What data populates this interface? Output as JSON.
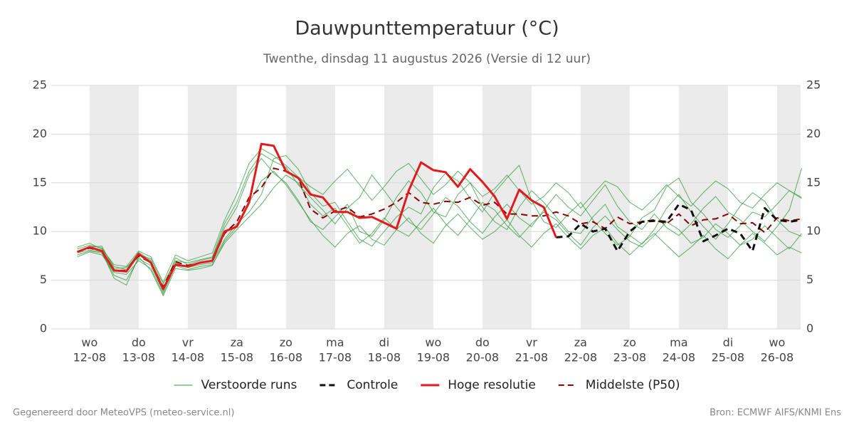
{
  "chart_data": {
    "type": "line",
    "title": "Dauwpunttemperatuur (°C)",
    "subtitle": "Twenthe, dinsdag 11 augustus 2026 (Versie di 12 uur)",
    "source_left": "Gegenereerd door MeteoVPS (meteo-service.nl)",
    "source_right": "Bron: ECMWF AIFS/KNMI Ens",
    "xlim": [
      -0.78,
      14.48
    ],
    "xticks": [
      {
        "value": 0,
        "label": [
          "wo",
          "12-08"
        ]
      },
      {
        "value": 1,
        "label": [
          "do",
          "13-08"
        ]
      },
      {
        "value": 2,
        "label": [
          "vr",
          "14-08"
        ]
      },
      {
        "value": 3,
        "label": [
          "za",
          "15-08"
        ]
      },
      {
        "value": 4,
        "label": [
          "zo",
          "16-08"
        ]
      },
      {
        "value": 5,
        "label": [
          "ma",
          "17-08"
        ]
      },
      {
        "value": 6,
        "label": [
          "di",
          "18-08"
        ]
      },
      {
        "value": 7,
        "label": [
          "wo",
          "19-08"
        ]
      },
      {
        "value": 8,
        "label": [
          "do",
          "20-08"
        ]
      },
      {
        "value": 9,
        "label": [
          "vr",
          "21-08"
        ]
      },
      {
        "value": 10,
        "label": [
          "za",
          "22-08"
        ]
      },
      {
        "value": 11,
        "label": [
          "zo",
          "23-08"
        ]
      },
      {
        "value": 12,
        "label": [
          "ma",
          "24-08"
        ]
      },
      {
        "value": 13,
        "label": [
          "di",
          "25-08"
        ]
      },
      {
        "value": 14,
        "label": [
          "wo",
          "26-08"
        ]
      }
    ],
    "alternate_day_shading": true,
    "ylim": [
      0,
      25
    ],
    "yticks": [
      0,
      5,
      10,
      15,
      20,
      25
    ],
    "y2lim": [
      0,
      25
    ],
    "y2ticks": [
      0,
      5,
      10,
      15,
      20,
      25
    ],
    "grid": true,
    "x": [
      -0.25,
      0,
      0.25,
      0.5,
      0.75,
      1,
      1.25,
      1.5,
      1.75,
      2,
      2.25,
      2.5,
      2.75,
      3,
      3.25,
      3.5,
      3.75,
      4,
      4.25,
      4.5,
      4.75,
      5,
      5.25,
      5.5,
      5.75,
      6,
      6.25,
      6.5,
      6.75,
      7,
      7.25,
      7.5,
      7.75,
      8,
      8.25,
      8.5,
      8.75,
      9,
      9.25,
      9.5,
      9.75,
      10,
      10.25,
      10.5,
      10.75,
      11,
      11.25,
      11.5,
      11.75,
      12,
      12.25,
      12.5,
      12.75,
      13,
      13.25,
      13.5,
      13.75,
      14,
      14.25,
      14.5
    ],
    "ensemble": {
      "name": "Verstoorde runs",
      "color": "#2e9a3a",
      "members": [
        [
          8.2,
          8.6,
          8.3,
          6.4,
          6.1,
          7.9,
          7.0,
          4.0,
          7.3,
          6.6,
          7.0,
          7.3,
          10.4,
          12.5,
          15.8,
          17.5,
          16.0,
          15.0,
          13.2,
          11.0,
          10.2,
          11.5,
          12.8,
          10.0,
          9.5,
          11.2,
          13.5,
          15.2,
          14.0,
          12.0,
          11.5,
          13.8,
          15.0,
          12.5,
          11.0,
          10.2,
          12.5,
          14.2,
          13.0,
          11.5,
          10.0,
          9.8,
          11.5,
          12.8,
          10.5,
          9.6,
          8.7,
          10.2,
          12.4,
          13.8,
          12.0,
          10.5,
          9.2,
          10.8,
          12.6,
          14.0,
          13.1,
          11.2,
          10.0,
          9.5
        ],
        [
          7.6,
          8.0,
          7.8,
          5.5,
          5.0,
          7.2,
          6.5,
          3.8,
          6.8,
          6.3,
          6.6,
          6.8,
          9.2,
          10.8,
          12.0,
          13.8,
          17.5,
          17.8,
          16.4,
          14.0,
          12.6,
          13.0,
          11.0,
          9.2,
          8.5,
          10.0,
          11.5,
          12.5,
          11.8,
          14.5,
          16.0,
          15.2,
          13.4,
          12.0,
          14.0,
          15.5,
          16.8,
          13.2,
          11.0,
          10.4,
          11.8,
          13.0,
          11.2,
          9.8,
          8.6,
          9.5,
          11.4,
          12.2,
          14.6,
          15.5,
          13.0,
          11.8,
          10.2,
          9.4,
          10.6,
          12.0,
          11.5,
          12.8,
          14.2,
          13.5
        ],
        [
          8.0,
          8.4,
          8.5,
          6.2,
          6.3,
          7.6,
          7.2,
          4.6,
          7.0,
          6.8,
          7.1,
          7.4,
          10.8,
          13.0,
          16.2,
          18.0,
          17.2,
          16.6,
          14.8,
          13.5,
          12.2,
          10.8,
          12.4,
          13.5,
          15.8,
          14.2,
          12.5,
          11.0,
          10.2,
          11.8,
          13.5,
          12.6,
          11.0,
          9.8,
          11.5,
          12.8,
          11.4,
          10.5,
          12.2,
          13.8,
          12.5,
          11.6,
          13.2,
          14.8,
          12.6,
          11.0,
          10.2,
          11.8,
          10.4,
          9.6,
          10.8,
          12.4,
          13.6,
          12.0,
          11.2,
          10.0,
          9.0,
          10.5,
          12.2,
          16.5
        ],
        [
          7.4,
          7.9,
          7.6,
          5.8,
          5.6,
          7.0,
          6.2,
          3.6,
          6.5,
          6.1,
          6.4,
          6.6,
          8.8,
          10.2,
          11.5,
          12.8,
          14.5,
          15.8,
          15.0,
          12.8,
          11.6,
          12.4,
          10.6,
          8.8,
          9.8,
          11.4,
          10.2,
          9.5,
          11.0,
          12.4,
          10.8,
          9.6,
          11.2,
          13.0,
          12.2,
          10.6,
          9.4,
          10.8,
          12.0,
          11.2,
          9.8,
          8.6,
          10.4,
          11.6,
          10.2,
          9.0,
          8.4,
          9.6,
          11.0,
          10.2,
          8.8,
          9.4,
          10.8,
          9.8,
          8.6,
          9.2,
          10.6,
          9.4,
          8.2,
          9.8
        ],
        [
          8.4,
          8.8,
          8.2,
          6.6,
          6.4,
          8.0,
          7.4,
          4.8,
          7.6,
          7.0,
          7.4,
          7.8,
          11.2,
          13.8,
          17.0,
          18.5,
          17.8,
          16.8,
          15.6,
          14.6,
          13.8,
          15.2,
          16.4,
          14.8,
          13.2,
          14.6,
          16.2,
          17.0,
          15.4,
          13.8,
          14.8,
          16.2,
          15.0,
          13.6,
          14.4,
          15.8,
          14.2,
          12.8,
          13.6,
          15.0,
          14.0,
          12.4,
          13.8,
          15.2,
          14.6,
          13.0,
          12.2,
          13.4,
          14.8,
          13.6,
          12.6,
          14.0,
          15.2,
          14.4,
          13.0,
          12.4,
          13.8,
          15.0,
          14.2,
          13.4
        ],
        [
          7.8,
          8.1,
          7.9,
          5.2,
          4.5,
          7.4,
          6.0,
          3.4,
          6.2,
          6.0,
          6.2,
          6.5,
          9.0,
          10.5,
          13.0,
          15.2,
          16.2,
          14.8,
          13.0,
          11.2,
          9.6,
          8.4,
          9.8,
          10.6,
          9.2,
          8.6,
          10.2,
          11.4,
          9.8,
          8.8,
          10.6,
          11.8,
          10.4,
          9.2,
          10.0,
          11.2,
          9.6,
          8.4,
          9.8,
          10.8,
          9.4,
          8.2,
          9.6,
          10.4,
          8.8,
          7.6,
          8.8,
          9.8,
          8.6,
          7.4,
          8.4,
          9.6,
          8.2,
          7.2,
          8.6,
          9.8,
          8.8,
          7.6,
          8.4,
          7.8
        ]
      ]
    },
    "series": [
      {
        "name": "Controle",
        "color": "#111111",
        "dash": true,
        "width": 3,
        "values": [
          null,
          null,
          null,
          null,
          null,
          null,
          null,
          null,
          null,
          null,
          null,
          null,
          null,
          null,
          null,
          null,
          null,
          null,
          null,
          null,
          null,
          null,
          null,
          null,
          null,
          null,
          null,
          null,
          null,
          null,
          null,
          null,
          null,
          null,
          null,
          null,
          null,
          null,
          null,
          9.4,
          9.5,
          10.8,
          10.0,
          10.3,
          8.0,
          10.0,
          11.0,
          11.1,
          11.0,
          12.8,
          12.2,
          9.0,
          9.6,
          10.3,
          9.8,
          8.0,
          12.4,
          11.2,
          11.0,
          11.2
        ]
      },
      {
        "name": "Hoge resolutie",
        "color": "#e31a1c",
        "dash": false,
        "width": 3,
        "values": [
          7.9,
          8.4,
          8.0,
          6.0,
          5.9,
          7.7,
          6.8,
          4.1,
          6.6,
          6.4,
          6.8,
          7.0,
          10.0,
          10.5,
          13.0,
          19.0,
          18.8,
          16.2,
          15.5,
          13.8,
          13.5,
          12.0,
          12.0,
          11.4,
          11.5,
          10.9,
          10.3,
          14.2,
          17.1,
          16.3,
          16.1,
          14.6,
          16.4,
          15.1,
          13.6,
          11.3,
          14.3,
          13.2,
          12.5,
          9.4,
          null,
          null,
          null,
          null,
          null,
          null,
          null,
          null,
          null,
          null,
          null,
          null,
          null,
          null,
          null,
          null,
          null,
          null,
          null,
          null
        ]
      },
      {
        "name": "Middelste (P50)",
        "color": "#8b0000",
        "dash": true,
        "width": 2,
        "values": [
          7.9,
          8.3,
          8.0,
          6.0,
          6.0,
          7.5,
          6.8,
          4.3,
          6.9,
          6.5,
          6.8,
          7.0,
          9.8,
          11.0,
          13.5,
          14.5,
          16.5,
          16.2,
          15.5,
          12.3,
          11.4,
          12.1,
          12.5,
          11.5,
          11.8,
          12.3,
          13.0,
          14.0,
          13.0,
          12.8,
          13.1,
          13.0,
          13.5,
          12.7,
          13.0,
          11.8,
          11.8,
          11.6,
          11.6,
          12.0,
          11.6,
          10.8,
          11.0,
          10.3,
          11.5,
          10.8,
          11.0,
          11.2,
          10.8,
          11.8,
          10.6,
          11.2,
          11.3,
          11.8,
          10.8,
          10.9,
          9.9,
          11.4,
          11.1,
          11.3
        ]
      }
    ]
  }
}
